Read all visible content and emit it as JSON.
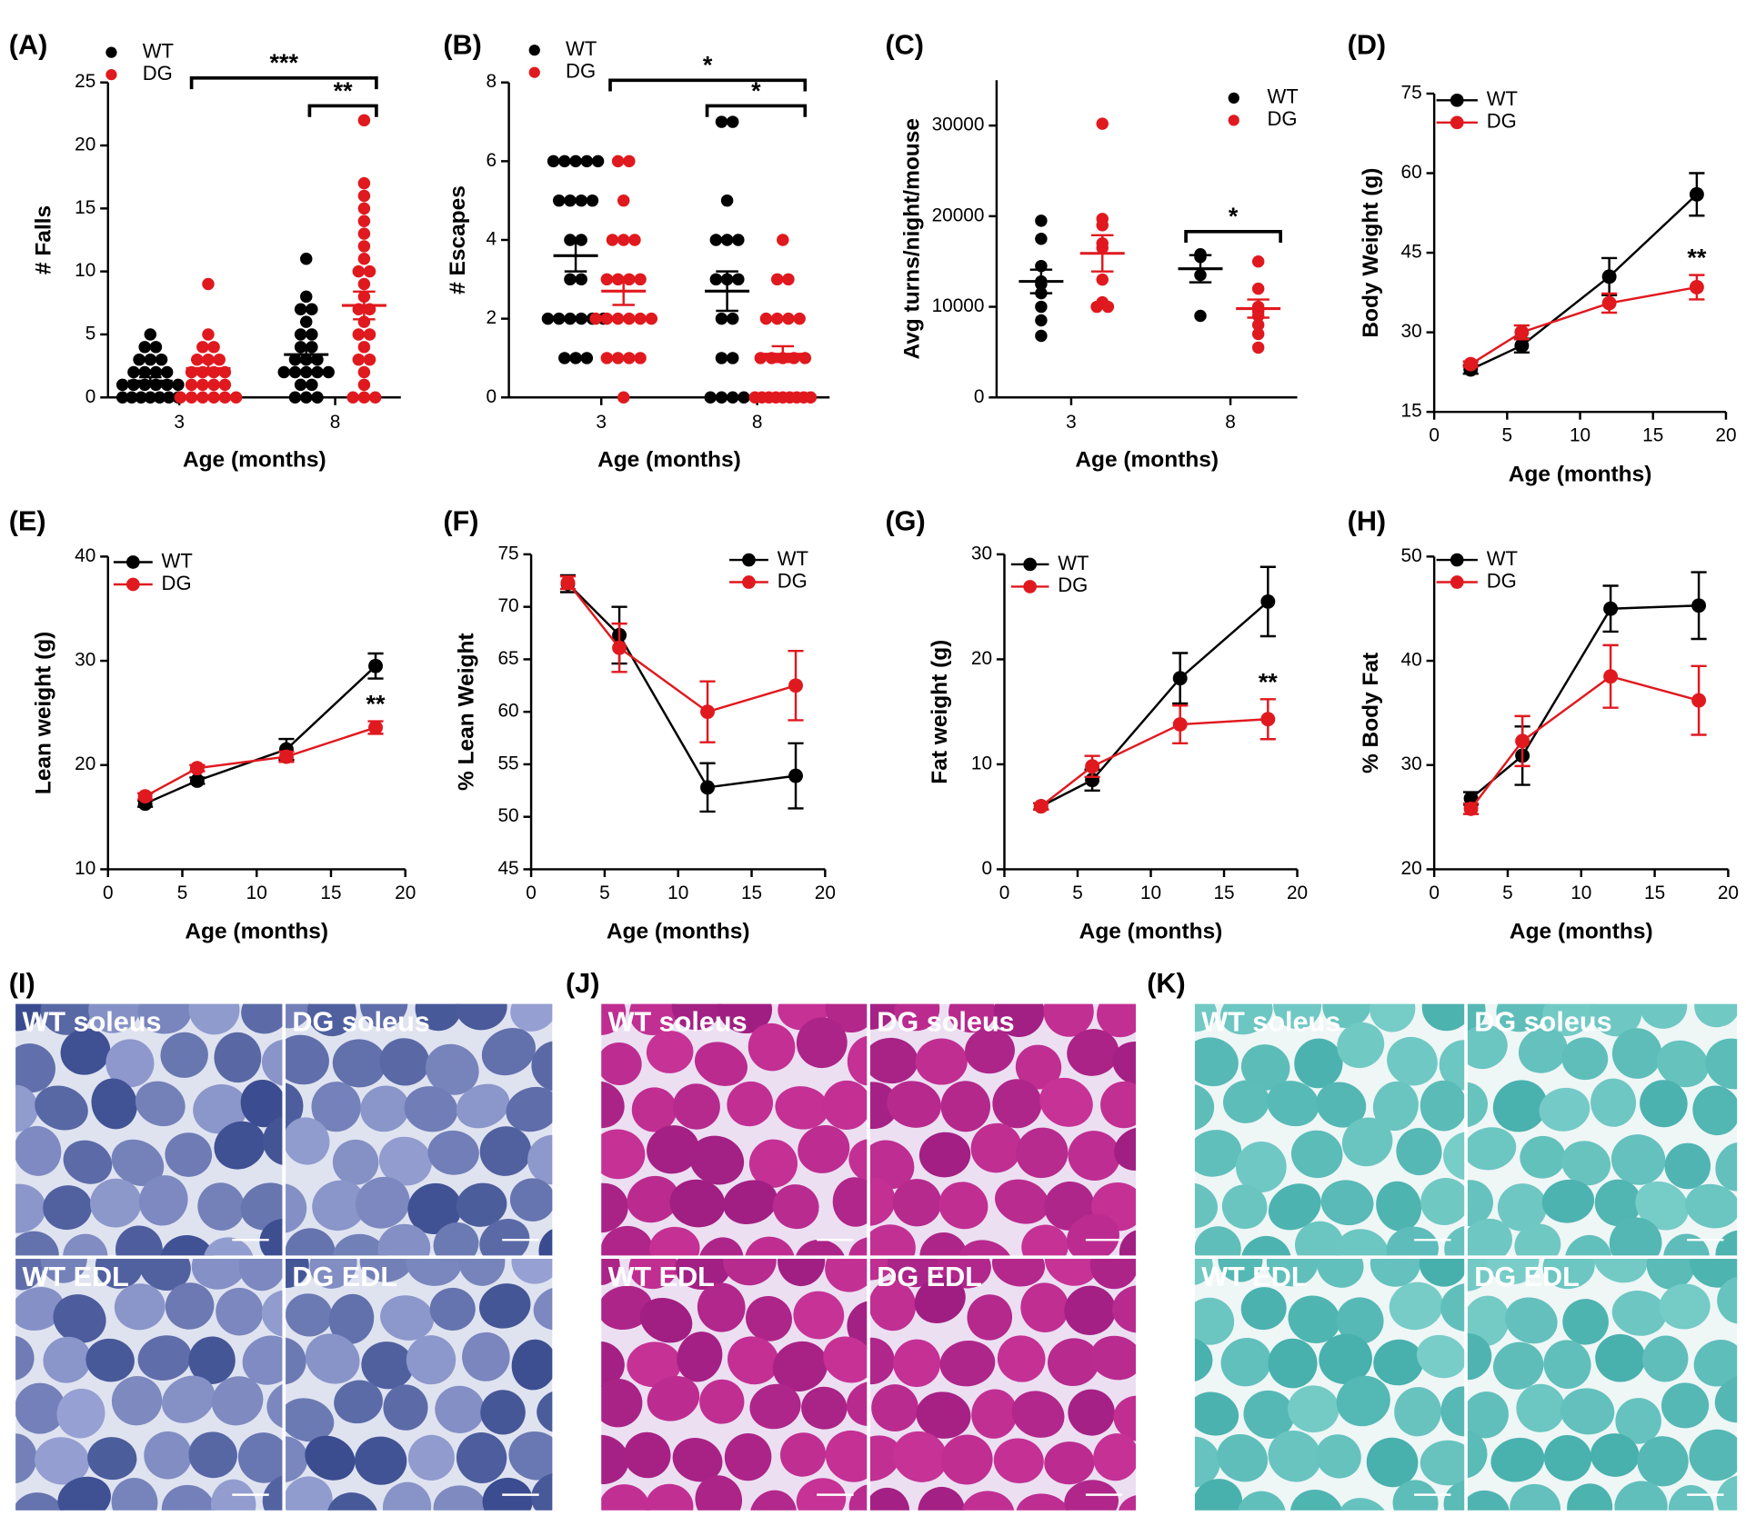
{
  "chart_data": [
    {
      "type": "dotplot",
      "label": "(A)",
      "ylabel": "# Falls",
      "xlabel": "Age (months)",
      "categories": [
        "3",
        "8"
      ],
      "ylim": [
        0,
        25
      ],
      "yticks": [
        0,
        5,
        10,
        15,
        20,
        25
      ],
      "annotations": [
        "***",
        "**"
      ],
      "series": [
        {
          "name": "WT",
          "color": "#000000",
          "values": [
            [
              0,
              0,
              0,
              0,
              0,
              0,
              0,
              1,
              1,
              1,
              1,
              1,
              1,
              2,
              2,
              2,
              2,
              3,
              3,
              3,
              4,
              4,
              5
            ],
            [
              0,
              0,
              0,
              1,
              1,
              2,
              2,
              2,
              2,
              2,
              3,
              3,
              3,
              4,
              4,
              5,
              5,
              6,
              7,
              7,
              8,
              11
            ]
          ],
          "mean": [
            1.3,
            3.4
          ],
          "sem": [
            0.3,
            0.6
          ]
        },
        {
          "name": "DG",
          "color": "#e0191f",
          "values": [
            [
              0,
              0,
              0,
              0,
              0,
              0,
              1,
              1,
              1,
              1,
              2,
              2,
              2,
              2,
              3,
              3,
              3,
              4,
              4,
              5,
              9
            ],
            [
              0,
              0,
              0,
              1,
              2,
              3,
              3,
              4,
              5,
              5,
              6,
              7,
              7,
              8,
              9,
              10,
              10,
              11,
              12,
              13,
              14,
              15,
              16,
              17,
              22
            ]
          ],
          "mean": [
            2.3,
            7.3
          ],
          "sem": [
            0.5,
            1.1
          ]
        }
      ]
    },
    {
      "type": "dotplot",
      "label": "(B)",
      "ylabel": "# Escapes",
      "xlabel": "Age (months)",
      "categories": [
        "3",
        "8"
      ],
      "ylim": [
        0,
        8
      ],
      "yticks": [
        0,
        2,
        4,
        6,
        8
      ],
      "annotations": [
        "*",
        "*"
      ],
      "series": [
        {
          "name": "WT",
          "color": "#000000",
          "values": [
            [
              1,
              1,
              1,
              2,
              2,
              2,
              2,
              2,
              2,
              3,
              3,
              4,
              4,
              5,
              5,
              5,
              5,
              6,
              6,
              6,
              6,
              6
            ],
            [
              0,
              0,
              0,
              0,
              1,
              1,
              2,
              2,
              3,
              3,
              3,
              4,
              4,
              4,
              5,
              7,
              7
            ]
          ],
          "mean": [
            3.6,
            2.7
          ],
          "sem": [
            0.4,
            0.5
          ]
        },
        {
          "name": "DG",
          "color": "#e0191f",
          "values": [
            [
              0,
              1,
              1,
              1,
              1,
              2,
              2,
              2,
              2,
              2,
              2,
              3,
              3,
              3,
              3,
              4,
              4,
              4,
              5,
              6,
              6
            ],
            [
              0,
              0,
              0,
              0,
              0,
              0,
              0,
              0,
              0,
              1,
              1,
              1,
              1,
              1,
              2,
              2,
              2,
              2,
              3,
              3,
              4
            ]
          ],
          "mean": [
            2.7,
            1.1
          ],
          "sem": [
            0.35,
            0.2
          ]
        }
      ]
    },
    {
      "type": "dotplot",
      "label": "(C)",
      "ylabel": "Avg turns/night/mouse",
      "xlabel": "Age (months)",
      "categories": [
        "3",
        "8"
      ],
      "ylim": [
        0,
        35000
      ],
      "yticks": [
        0,
        10000,
        20000,
        30000
      ],
      "annotations": [
        "*"
      ],
      "series": [
        {
          "name": "WT",
          "color": "#000000",
          "values": [
            [
              19500,
              17500,
              14500,
              12800,
              12500,
              11500,
              10000,
              8500,
              6800
            ],
            [
              15800,
              15500,
              13500,
              9000
            ]
          ],
          "mean": [
            12800,
            14200
          ],
          "sem": [
            1300,
            1500
          ]
        },
        {
          "name": "DG",
          "color": "#e0191f",
          "values": [
            [
              30200,
              19700,
              19000,
              17000,
              16500,
              13000,
              10500,
              10000,
              10000
            ],
            [
              15000,
              12000,
              10000,
              9500,
              9000,
              8000,
              7000,
              5500
            ]
          ],
          "mean": [
            15900,
            9800
          ],
          "sem": [
            2000,
            1000
          ]
        }
      ]
    },
    {
      "type": "line",
      "label": "(D)",
      "ylabel": "Body Weight (g)",
      "xlabel": "Age (months)",
      "x": [
        2.5,
        6,
        12,
        18
      ],
      "xlim": [
        0,
        20
      ],
      "xticks": [
        0,
        5,
        10,
        15,
        20
      ],
      "ylim": [
        15,
        75
      ],
      "yticks": [
        15,
        30,
        45,
        60,
        75
      ],
      "annotation": "**",
      "series": [
        {
          "name": "WT",
          "color": "#000000",
          "values": [
            23,
            27.5,
            40.5,
            56
          ],
          "errors": [
            0.8,
            1.3,
            3.5,
            4
          ]
        },
        {
          "name": "DG",
          "color": "#e0191f",
          "values": [
            24,
            30,
            35.5,
            38.5
          ],
          "errors": [
            0.5,
            1.3,
            1.8,
            2.3
          ]
        }
      ]
    },
    {
      "type": "line",
      "label": "(E)",
      "ylabel": "Lean weight (g)",
      "xlabel": "Age (months)",
      "x": [
        2.5,
        6,
        12,
        18
      ],
      "xlim": [
        0,
        20
      ],
      "xticks": [
        0,
        5,
        10,
        15,
        20
      ],
      "ylim": [
        10,
        40
      ],
      "yticks": [
        10,
        20,
        30,
        40
      ],
      "annotation": "**",
      "series": [
        {
          "name": "WT",
          "color": "#000000",
          "values": [
            16.3,
            18.5,
            21.5,
            29.5
          ],
          "errors": [
            0.3,
            0.3,
            1,
            1.2
          ]
        },
        {
          "name": "DG",
          "color": "#e0191f",
          "values": [
            17,
            19.7,
            20.8,
            23.6
          ],
          "errors": [
            0.3,
            0.3,
            0.5,
            0.6
          ]
        }
      ]
    },
    {
      "type": "line",
      "label": "(F)",
      "ylabel": "% Lean Weight",
      "xlabel": "Age (months)",
      "x": [
        2.5,
        6,
        12,
        18
      ],
      "xlim": [
        0,
        20
      ],
      "xticks": [
        0,
        5,
        10,
        15,
        20
      ],
      "ylim": [
        45,
        75
      ],
      "yticks": [
        45,
        50,
        55,
        60,
        65,
        70,
        75
      ],
      "series": [
        {
          "name": "WT",
          "color": "#000000",
          "values": [
            72.2,
            67.3,
            52.8,
            53.9
          ],
          "errors": [
            0.8,
            2.7,
            2.3,
            3.1
          ]
        },
        {
          "name": "DG",
          "color": "#e0191f",
          "values": [
            72.3,
            66.1,
            60,
            62.5
          ],
          "errors": [
            0.6,
            2.3,
            2.9,
            3.3
          ]
        }
      ]
    },
    {
      "type": "line",
      "label": "(G)",
      "ylabel": "Fat weight (g)",
      "xlabel": "Age (months)",
      "x": [
        2.5,
        6,
        12,
        18
      ],
      "xlim": [
        0,
        20
      ],
      "xticks": [
        0,
        5,
        10,
        15,
        20
      ],
      "ylim": [
        0,
        30
      ],
      "yticks": [
        0,
        10,
        20,
        30
      ],
      "annotation": "**",
      "series": [
        {
          "name": "WT",
          "color": "#000000",
          "values": [
            6,
            8.5,
            18.2,
            25.5
          ],
          "errors": [
            0.3,
            1,
            2.4,
            3.3
          ]
        },
        {
          "name": "DG",
          "color": "#e0191f",
          "values": [
            6,
            9.8,
            13.8,
            14.3
          ],
          "errors": [
            0.3,
            1,
            1.8,
            1.9
          ]
        }
      ]
    },
    {
      "type": "line",
      "label": "(H)",
      "ylabel": "% Body Fat",
      "xlabel": "Age (months)",
      "x": [
        2.5,
        6,
        12,
        18
      ],
      "xlim": [
        0,
        20
      ],
      "xticks": [
        0,
        5,
        10,
        15,
        20
      ],
      "ylim": [
        20,
        50
      ],
      "yticks": [
        20,
        30,
        40,
        50
      ],
      "series": [
        {
          "name": "WT",
          "color": "#000000",
          "values": [
            26.8,
            30.9,
            45,
            45.3
          ],
          "errors": [
            0.6,
            2.8,
            2.2,
            3.2
          ]
        },
        {
          "name": "DG",
          "color": "#e0191f",
          "values": [
            25.8,
            32.3,
            38.5,
            36.2
          ],
          "errors": [
            0.5,
            2.4,
            3,
            3.3
          ]
        }
      ]
    }
  ],
  "images": [
    {
      "label": "(I)",
      "tiles": [
        "WT soleus",
        "DG soleus",
        "WT EDL",
        "DG EDL"
      ]
    },
    {
      "label": "(J)",
      "tiles": [
        "WT soleus",
        "DG soleus",
        "WT EDL",
        "DG EDL"
      ]
    },
    {
      "label": "(K)",
      "tiles": [
        "WT soleus",
        "DG soleus",
        "WT EDL",
        "DG EDL"
      ]
    }
  ]
}
